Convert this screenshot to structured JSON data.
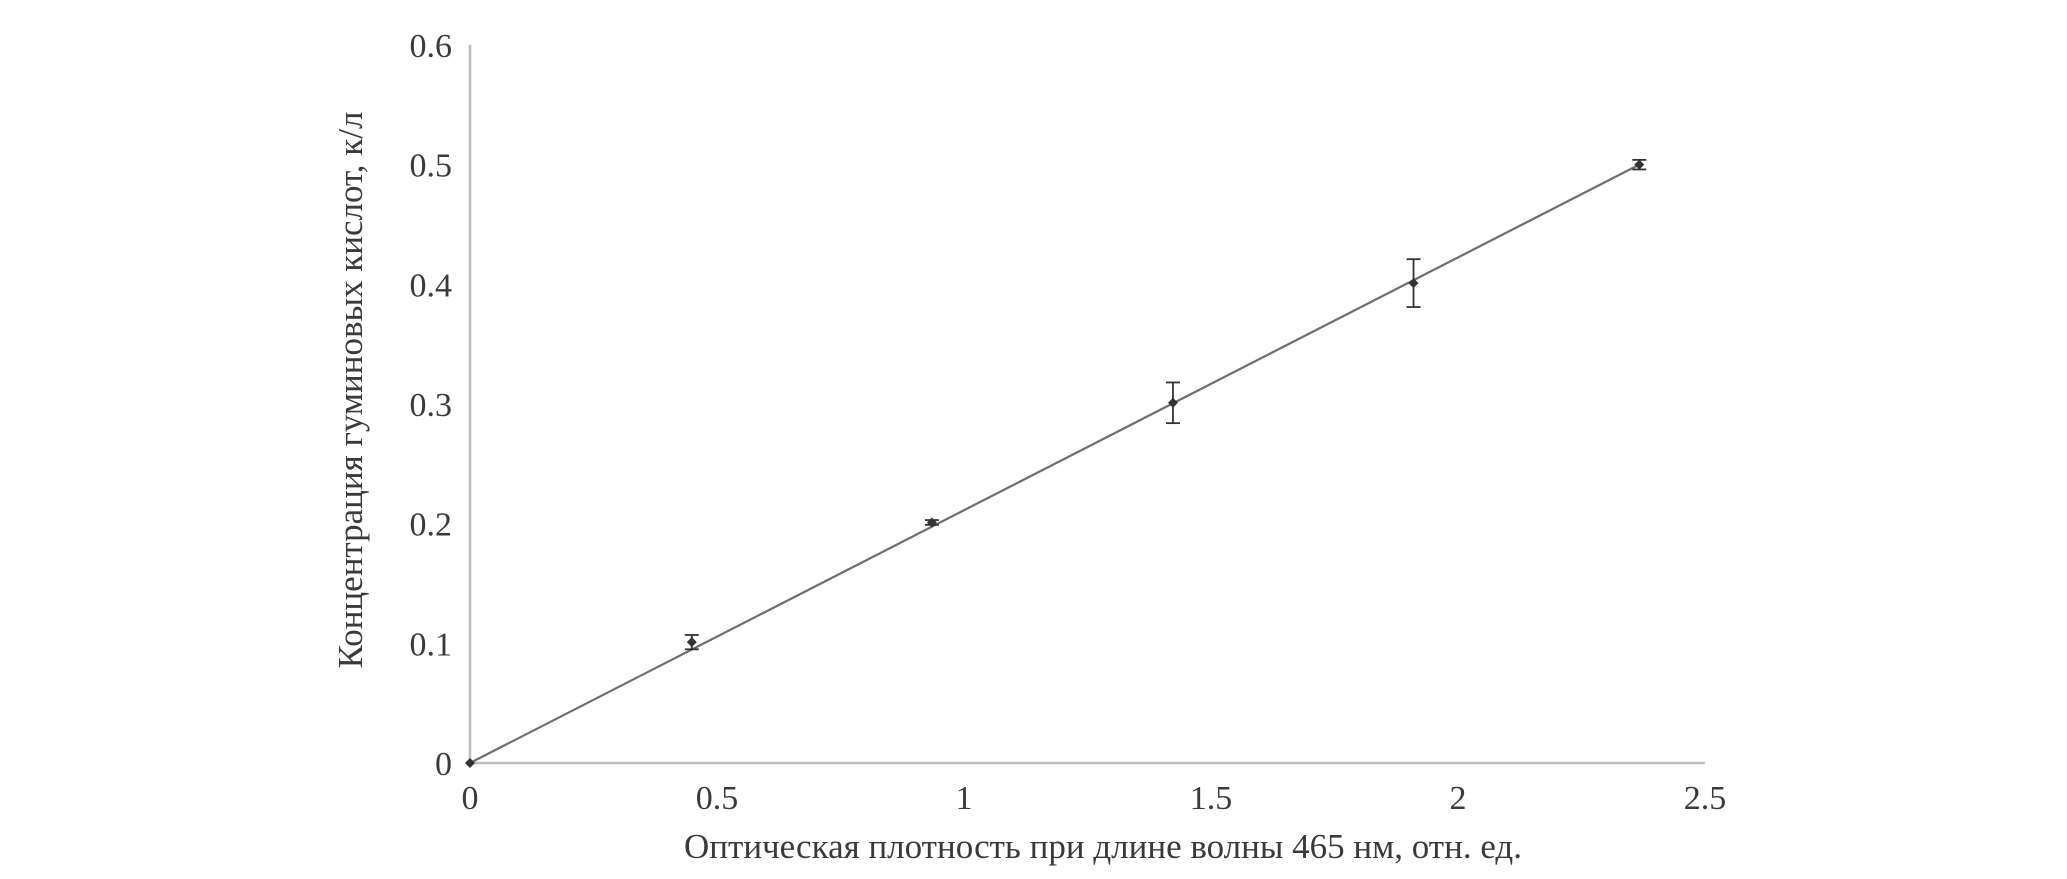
{
  "chart_data": {
    "type": "line",
    "title": "",
    "xlabel": "Оптическая плотность при длине волны 465 нм, отн. ед.",
    "ylabel": "Концентрация гуминовых кислот, к/л",
    "xlim": [
      0,
      2.5
    ],
    "ylim": [
      0,
      0.6
    ],
    "x_ticks": [
      0,
      0.5,
      1,
      1.5,
      2,
      2.5
    ],
    "x_tick_labels": [
      "0",
      "0.5",
      "1",
      "1.5",
      "2",
      "2.5"
    ],
    "y_ticks": [
      0,
      0.1,
      0.2,
      0.3,
      0.4,
      0.5,
      0.6
    ],
    "y_tick_labels": [
      "0",
      "0.1",
      "0.2",
      "0.3",
      "0.4",
      "0.5",
      "0.6"
    ],
    "grid": false,
    "legend": "none",
    "series": [
      {
        "x": [
          0,
          0.449,
          0.935,
          1.423,
          1.91,
          2.367
        ],
        "y": [
          0,
          0.101,
          0.201,
          0.301,
          0.401,
          0.5
        ],
        "y_error": [
          0,
          0.006,
          0.002,
          0.017,
          0.02,
          0.004
        ],
        "marker": "diamond",
        "color": "#333333"
      }
    ],
    "trendline": {
      "type": "linear",
      "from": [
        0,
        0
      ],
      "to": [
        2.367,
        0.5
      ],
      "color": "#6e6e6e"
    },
    "axis_color": "#bdbdbd"
  }
}
